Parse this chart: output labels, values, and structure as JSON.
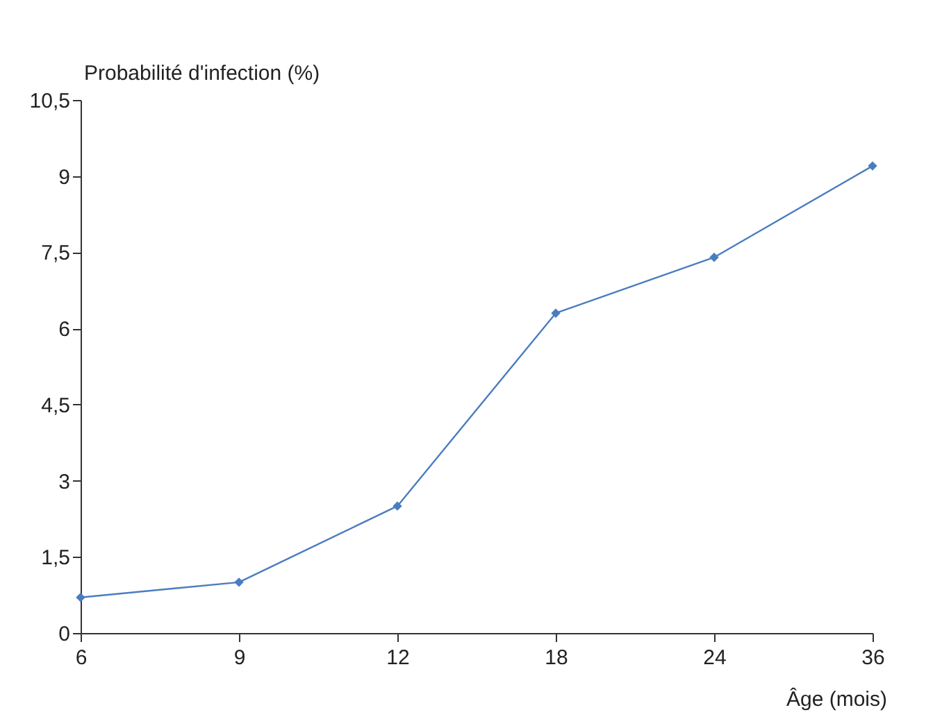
{
  "chart_data": {
    "type": "line",
    "ylabel": "Probabilité d'infection (%)",
    "xlabel": "Âge (mois)",
    "categories": [
      "6",
      "9",
      "12",
      "18",
      "24",
      "36"
    ],
    "series": [
      {
        "color": "#4a7cc0",
        "values": [
          0.7,
          1.0,
          2.5,
          6.3,
          7.4,
          9.2
        ]
      }
    ],
    "ylim": [
      0,
      10.5
    ],
    "yticks": [
      0,
      {
        "value": 1.5,
        "label": "1,5"
      },
      3,
      {
        "value": 4.5,
        "label": "4,5"
      },
      6,
      {
        "value": 7.5,
        "label": "7,5"
      },
      9,
      {
        "value": 10.5,
        "label": "10,5"
      }
    ],
    "grid": false,
    "marker": "diamond",
    "line_style": "solid"
  }
}
